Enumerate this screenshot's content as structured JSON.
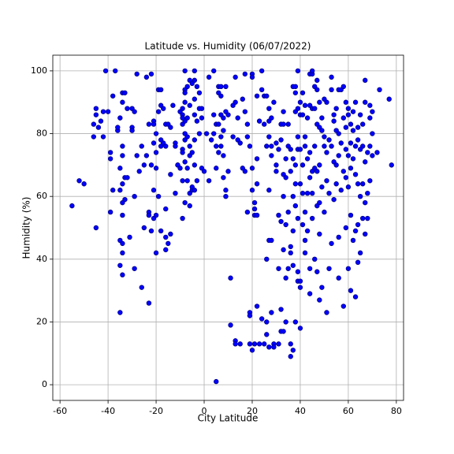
{
  "chart_data": {
    "type": "scatter",
    "title": "Latitude vs. Humidity (06/07/2022)",
    "x_label": "City Latitude",
    "y_label": "Humidity (%)",
    "color": "#0000ff",
    "edge_color": "#00008b",
    "grid": true,
    "xlim": [
      -63,
      83
    ],
    "ylim": [
      -5,
      105
    ],
    "xticks": [
      -60,
      -40,
      -20,
      0,
      20,
      40,
      60,
      80
    ],
    "yticks": [
      0,
      20,
      40,
      60,
      80,
      100
    ],
    "x": [
      -55,
      -52,
      -50,
      -46,
      -46,
      -45,
      -45,
      -44,
      -43,
      -42,
      -42,
      -41,
      -40,
      -45,
      -39,
      -39,
      -39,
      -38,
      -38,
      -37,
      -36,
      -36,
      -35,
      -35,
      -35,
      -35,
      -35,
      -35,
      -34,
      -34,
      -34,
      -34,
      -34,
      -34,
      -34,
      -34,
      -34,
      -34,
      -33,
      -33,
      -33,
      -32,
      -32,
      -31,
      -30,
      -30,
      -30,
      -29,
      -29,
      -29,
      -28,
      -28,
      -27,
      -26,
      -26,
      -25,
      -25,
      -24,
      -24,
      -23,
      -23,
      -23,
      -23,
      -22,
      -22,
      -22,
      -21,
      -21,
      -21,
      -21,
      -21,
      -20,
      -20,
      -20,
      -20,
      -20,
      -19,
      -19,
      -19,
      -18,
      -18,
      -18,
      -18,
      -18,
      -17,
      -17,
      -16,
      -16,
      -16,
      -16,
      -16,
      -15,
      -15,
      -14,
      -14,
      -14,
      -13,
      -12,
      -12,
      -12,
      -11,
      -11,
      -10,
      -10,
      -9,
      -9,
      -9,
      -9,
      -9,
      -9,
      -9,
      -9,
      -8,
      -8,
      -8,
      -8,
      -8,
      -8,
      -8,
      -8,
      -8,
      -7,
      -7,
      -7,
      -7,
      -7,
      -6,
      -6,
      -6,
      -6,
      -6,
      -6,
      -5,
      -5,
      -5,
      -5,
      -4,
      -4,
      -4,
      -4,
      -4,
      -4,
      -4,
      -3,
      -3,
      -3,
      -2,
      -2,
      -2,
      -1,
      -1,
      -1,
      0,
      1,
      2,
      2,
      3,
      4,
      4,
      4,
      5,
      5,
      5,
      5,
      6,
      6,
      6,
      6,
      7,
      7,
      7,
      7,
      7,
      8,
      8,
      8,
      8,
      9,
      9,
      9,
      9,
      10,
      10,
      11,
      11,
      12,
      12,
      13,
      13,
      13,
      13,
      14,
      14,
      15,
      15,
      16,
      16,
      17,
      17,
      17,
      18,
      18,
      18,
      19,
      19,
      19,
      19,
      20,
      20,
      20,
      20,
      20,
      21,
      21,
      21,
      21,
      22,
      22,
      22,
      22,
      22,
      23,
      23,
      24,
      24,
      24,
      25,
      25,
      25,
      26,
      26,
      26,
      26,
      26,
      27,
      27,
      27,
      27,
      27,
      27,
      28,
      28,
      28,
      28,
      28,
      29,
      29,
      29,
      30,
      30,
      30,
      31,
      31,
      31,
      31,
      32,
      32,
      32,
      32,
      32,
      33,
      33,
      33,
      33,
      33,
      33,
      34,
      34,
      34,
      34,
      34,
      35,
      35,
      35,
      35,
      36,
      36,
      36,
      36,
      36,
      36,
      37,
      37,
      37,
      37,
      37,
      37,
      38,
      38,
      38,
      38,
      38,
      38,
      38,
      39,
      39,
      39,
      39,
      39,
      39,
      39,
      40,
      40,
      40,
      40,
      40,
      40,
      40,
      41,
      41,
      41,
      41,
      41,
      42,
      42,
      42,
      42,
      42,
      42,
      43,
      43,
      43,
      43,
      44,
      44,
      44,
      44,
      44,
      44,
      45,
      45,
      45,
      45,
      45,
      45,
      46,
      46,
      46,
      46,
      46,
      47,
      47,
      47,
      47,
      47,
      47,
      48,
      48,
      48,
      48,
      48,
      48,
      49,
      49,
      49,
      49,
      50,
      50,
      50,
      50,
      51,
      51,
      51,
      51,
      52,
      52,
      52,
      53,
      53,
      53,
      53,
      54,
      54,
      54,
      54,
      55,
      55,
      55,
      55,
      56,
      56,
      56,
      56,
      56,
      57,
      57,
      57,
      58,
      58,
      58,
      58,
      59,
      59,
      59,
      59,
      59,
      60,
      60,
      60,
      60,
      60,
      61,
      61,
      61,
      61,
      61,
      62,
      62,
      62,
      62,
      63,
      63,
      63,
      63,
      63,
      64,
      64,
      64,
      64,
      64,
      65,
      65,
      65,
      65,
      66,
      66,
      66,
      66,
      67,
      67,
      67,
      67,
      67,
      68,
      68,
      68,
      69,
      69,
      69,
      69,
      70,
      70,
      70,
      72,
      73,
      77,
      78
    ],
    "values": [
      57,
      65,
      64,
      83,
      79,
      88,
      86,
      82,
      84,
      87,
      79,
      100,
      87,
      50,
      55,
      72,
      74,
      92,
      62,
      100,
      81,
      82,
      85,
      69,
      62,
      46,
      38,
      23,
      93,
      90,
      76,
      73,
      64,
      58,
      54,
      45,
      42,
      35,
      93,
      66,
      59,
      88,
      66,
      47,
      82,
      81,
      88,
      87,
      60,
      37,
      99,
      73,
      68,
      31,
      76,
      50,
      70,
      98,
      73,
      83,
      55,
      54,
      26,
      99,
      70,
      49,
      84,
      83,
      77,
      62,
      53,
      80,
      74,
      69,
      54,
      42,
      94,
      87,
      60,
      94,
      89,
      78,
      76,
      49,
      88,
      77,
      76,
      83,
      56,
      47,
      43,
      83,
      45,
      82,
      67,
      48,
      89,
      61,
      77,
      76,
      70,
      70,
      69,
      87,
      88,
      86,
      85,
      83,
      75,
      74,
      65,
      53,
      100,
      94,
      93,
      90,
      84,
      80,
      78,
      71,
      58,
      95,
      85,
      79,
      69,
      65,
      97,
      89,
      76,
      73,
      61,
      57,
      96,
      74,
      62,
      63,
      100,
      97,
      91,
      86,
      78,
      70,
      62,
      95,
      84,
      65,
      88,
      93,
      80,
      88,
      85,
      69,
      68,
      80,
      98,
      65,
      78,
      100,
      86,
      80,
      83,
      76,
      1,
      69,
      95,
      93,
      83,
      74,
      95,
      92,
      86,
      79,
      76,
      85,
      81,
      73,
      66,
      95,
      87,
      62,
      60,
      86,
      68,
      34,
      19,
      89,
      79,
      98,
      90,
      14,
      13,
      85,
      78,
      77,
      13,
      91,
      69,
      99,
      87,
      68,
      83,
      79,
      55,
      76,
      23,
      22,
      13,
      99,
      98,
      69,
      62,
      11,
      58,
      56,
      54,
      13,
      92,
      72,
      64,
      54,
      25,
      84,
      13,
      100,
      94,
      21,
      92,
      83,
      13,
      92,
      76,
      40,
      20,
      16,
      88,
      84,
      79,
      62,
      46,
      12,
      85,
      76,
      73,
      46,
      23,
      90,
      13,
      12,
      77,
      68,
      70,
      75,
      54,
      37,
      13,
      78,
      83,
      52,
      24,
      17,
      87,
      83,
      67,
      60,
      43,
      17,
      72,
      66,
      51,
      34,
      20,
      83,
      76,
      55,
      37,
      75,
      68,
      44,
      42,
      13,
      9,
      95,
      72,
      60,
      49,
      38,
      11,
      95,
      93,
      87,
      70,
      64,
      57,
      20,
      100,
      88,
      79,
      75,
      53,
      36,
      33,
      90,
      86,
      75,
      64,
      33,
      31,
      18,
      93,
      86,
      70,
      61,
      51,
      89,
      79,
      76,
      55,
      46,
      42,
      85,
      72,
      61,
      49,
      99,
      89,
      74,
      66,
      37,
      29,
      99,
      100,
      88,
      68,
      61,
      53,
      95,
      88,
      76,
      69,
      40,
      97,
      94,
      83,
      68,
      57,
      36,
      90,
      82,
      70,
      58,
      48,
      27,
      85,
      81,
      63,
      31,
      91,
      79,
      76,
      55,
      90,
      74,
      65,
      23,
      78,
      61,
      37,
      98,
      94,
      76,
      45,
      86,
      84,
      71,
      59,
      88,
      81,
      70,
      64,
      94,
      80,
      73,
      47,
      34,
      94,
      77,
      62,
      95,
      85,
      68,
      25,
      90,
      82,
      75,
      66,
      50,
      88,
      86,
      73,
      63,
      37,
      83,
      77,
      69,
      54,
      30,
      87,
      81,
      72,
      46,
      90,
      76,
      67,
      49,
      28,
      82,
      78,
      64,
      51,
      39,
      86,
      75,
      60,
      42,
      83,
      76,
      64,
      53,
      97,
      90,
      71,
      58,
      48,
      74,
      61,
      53,
      89,
      85,
      76,
      65,
      87,
      80,
      73,
      74,
      94,
      91,
      70
    ]
  }
}
